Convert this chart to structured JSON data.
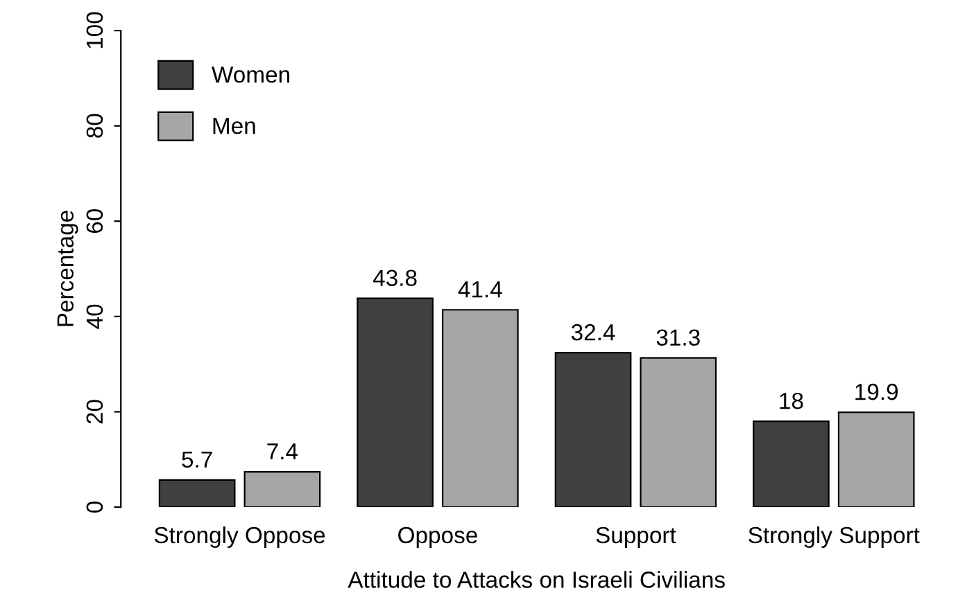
{
  "chart_data": {
    "type": "bar",
    "xlabel": "Attitude to Attacks on Israeli Civilians",
    "ylabel": "Percentage",
    "categories": [
      "Strongly Oppose",
      "Oppose",
      "Support",
      "Strongly Support"
    ],
    "series": [
      {
        "name": "Women",
        "color": "#404040",
        "values": [
          5.7,
          43.8,
          32.4,
          18
        ]
      },
      {
        "name": "Men",
        "color": "#a6a6a6",
        "values": [
          7.4,
          41.4,
          31.3,
          19.9
        ]
      }
    ],
    "ylim": [
      0,
      100
    ],
    "yticks": [
      0,
      20,
      40,
      60,
      80,
      100
    ],
    "data_labels": true,
    "legend": "top left",
    "grid": false
  }
}
